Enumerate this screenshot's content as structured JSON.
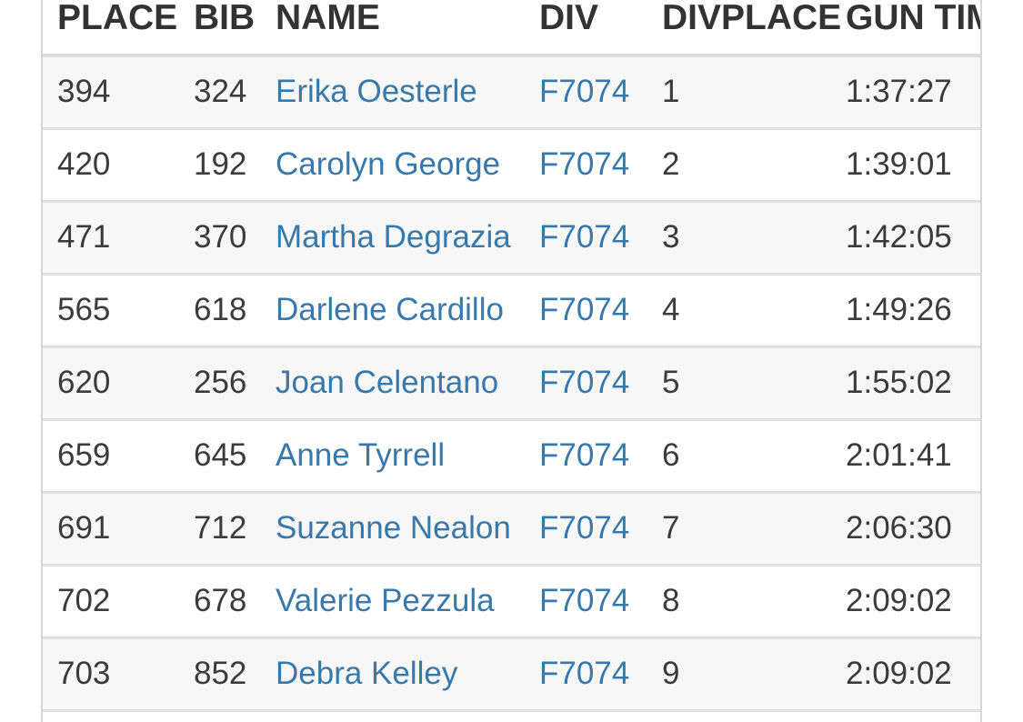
{
  "colors": {
    "link": "#3878aa",
    "stripe": "#f7f7f7",
    "separator": "#e0e0e0",
    "side_border": "#d6d6d6",
    "header_rule": "#dcdcdc",
    "header_text": "#333333",
    "body_text": "#3b3b3b"
  },
  "table": {
    "columns": [
      {
        "key": "place",
        "label": "PLACE",
        "link": false
      },
      {
        "key": "bib",
        "label": "BIB",
        "link": false
      },
      {
        "key": "name",
        "label": "NAME",
        "link": true
      },
      {
        "key": "div",
        "label": "DIV",
        "link": true
      },
      {
        "key": "divplace",
        "label": "DIVPLACE",
        "link": false
      },
      {
        "key": "gun_time",
        "label": "GUN TIME",
        "link": false
      }
    ],
    "rows": [
      {
        "place": "394",
        "bib": "324",
        "name": "Erika Oesterle",
        "div": "F7074",
        "divplace": "1",
        "gun_time": "1:37:27"
      },
      {
        "place": "420",
        "bib": "192",
        "name": "Carolyn George",
        "div": "F7074",
        "divplace": "2",
        "gun_time": "1:39:01"
      },
      {
        "place": "471",
        "bib": "370",
        "name": "Martha Degrazia",
        "div": "F7074",
        "divplace": "3",
        "gun_time": "1:42:05"
      },
      {
        "place": "565",
        "bib": "618",
        "name": "Darlene Cardillo",
        "div": "F7074",
        "divplace": "4",
        "gun_time": "1:49:26"
      },
      {
        "place": "620",
        "bib": "256",
        "name": "Joan Celentano",
        "div": "F7074",
        "divplace": "5",
        "gun_time": "1:55:02"
      },
      {
        "place": "659",
        "bib": "645",
        "name": "Anne Tyrrell",
        "div": "F7074",
        "divplace": "6",
        "gun_time": "2:01:41"
      },
      {
        "place": "691",
        "bib": "712",
        "name": "Suzanne Nealon",
        "div": "F7074",
        "divplace": "7",
        "gun_time": "2:06:30"
      },
      {
        "place": "702",
        "bib": "678",
        "name": "Valerie Pezzula",
        "div": "F7074",
        "divplace": "8",
        "gun_time": "2:09:02"
      },
      {
        "place": "703",
        "bib": "852",
        "name": "Debra Kelley",
        "div": "F7074",
        "divplace": "9",
        "gun_time": "2:09:02"
      }
    ]
  }
}
